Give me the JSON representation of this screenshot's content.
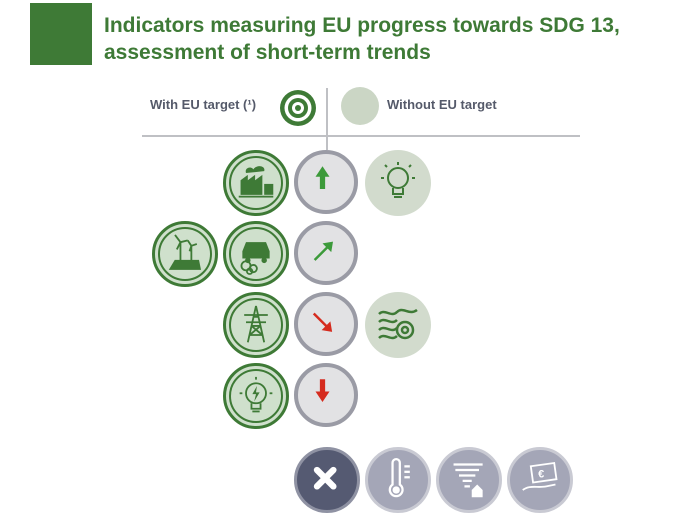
{
  "header": {
    "title": "Indicators measuring EU progress towards SDG 13, assessment of short-term trends"
  },
  "legend": {
    "with_target_label": "With EU target (¹)",
    "without_target_label": "Without EU target"
  },
  "trend_rows": [
    {
      "arrow": "up",
      "arrow_color": "#3c9a3a"
    },
    {
      "arrow": "up-right",
      "arrow_color": "#3c9a3a"
    },
    {
      "arrow": "down-right",
      "arrow_color": "#d52b1e"
    },
    {
      "arrow": "down",
      "arrow_color": "#d52b1e"
    }
  ],
  "colors": {
    "brand_green": "#3e7a36",
    "arrow_green": "#3c9a3a",
    "arrow_red": "#d52b1e",
    "divider_grey": "#bfc0c4"
  },
  "icons": [
    "factory-emissions-icon",
    "light-bulb-icon",
    "wind-solar-icon",
    "car-emissions-icon",
    "power-pylon-icon",
    "ocean-wave-icon",
    "energy-bulb-icon",
    "cross-icon",
    "thermometer-icon",
    "tornado-house-icon",
    "euro-hand-icon"
  ]
}
